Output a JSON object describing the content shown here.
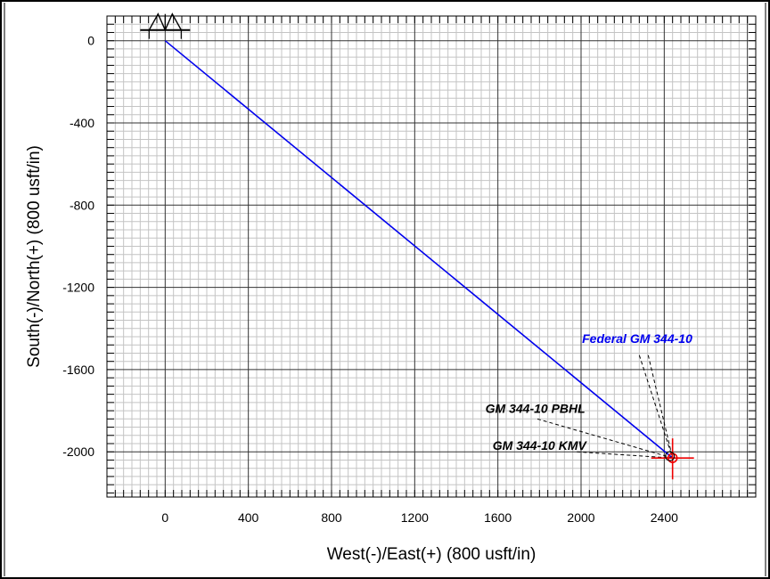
{
  "chart_data": {
    "type": "line",
    "title": "",
    "xlabel": "West(-)/East(+) (800 usft/in)",
    "ylabel": "South(-)/North(+) (800 usft/in)",
    "xlim": [
      -280,
      2840
    ],
    "ylim": [
      -2220,
      120
    ],
    "x_ticks": [
      0,
      400,
      800,
      1200,
      1600,
      2000,
      2400
    ],
    "y_ticks": [
      0,
      -400,
      -800,
      -1200,
      -1600,
      -2000
    ],
    "x_tick_labels": [
      "0",
      "400",
      "800",
      "1200",
      "1600",
      "2000",
      "2400"
    ],
    "y_tick_labels": [
      "0",
      "-400",
      "-800",
      "-1200",
      "-1600",
      "-2000"
    ],
    "grid": true,
    "minor_grid_step": 40,
    "major_grid_step": 400,
    "series": [
      {
        "name": "Federal GM 344-10",
        "color": "#0000ee",
        "x": [
          0,
          2440
        ],
        "y": [
          0,
          -2030
        ]
      }
    ],
    "surface_location": {
      "x": 0,
      "y": 0,
      "icon": "wellhead-icon"
    },
    "target": {
      "x": 2440,
      "y": -2030,
      "color": "#ee0000",
      "icon": "target-crosshair-icon"
    },
    "annotations": [
      {
        "text": "Federal GM 344-10",
        "color": "#0000ee",
        "x": 2270,
        "y": -1470,
        "anchor_x": 2440,
        "anchor_y": -2030
      },
      {
        "text": "GM 344-10 PBHL",
        "color": "#000000",
        "x": 1780,
        "y": -1810,
        "anchor_x": 2440,
        "anchor_y": -2030
      },
      {
        "text": "GM 344-10 KMV",
        "color": "#000000",
        "x": 1800,
        "y": -1990,
        "anchor_x": 2440,
        "anchor_y": -2030
      }
    ]
  }
}
